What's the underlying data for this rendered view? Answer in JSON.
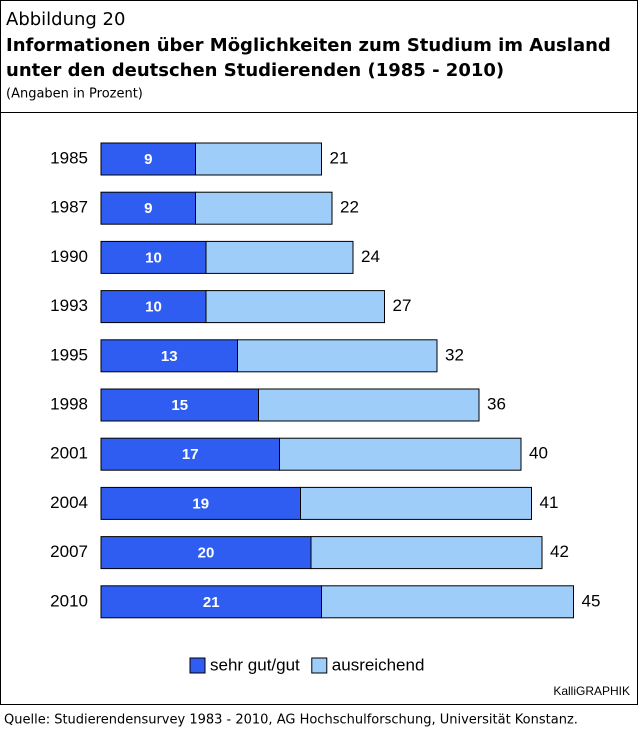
{
  "chart_data": {
    "type": "stacked_bar_horizontal",
    "figure_label": "Abbildung 20",
    "title": "Informationen über Möglichkeiten zum Studium im Ausland unter den deutschen Studierenden (1985 - 2010)",
    "title_lines": [
      "Informationen über Möglichkeiten zum Studium im Ausland",
      "unter den deutschen Studierenden (1985 - 2010)"
    ],
    "subtitle": "(Angaben in Prozent)",
    "categories": [
      "1985",
      "1987",
      "1990",
      "1993",
      "1995",
      "1998",
      "2001",
      "2004",
      "2007",
      "2010"
    ],
    "series": [
      {
        "name": "sehr gut/gut",
        "color": "#2f5df2",
        "values": [
          9,
          9,
          10,
          10,
          13,
          15,
          17,
          19,
          20,
          21
        ]
      },
      {
        "name": "ausreichend",
        "color": "#9fcdfa",
        "values": [
          12,
          13,
          14,
          17,
          19,
          21,
          23,
          22,
          22,
          24
        ]
      }
    ],
    "totals": [
      21,
      22,
      24,
      27,
      32,
      36,
      40,
      41,
      42,
      45
    ],
    "credit": "KalliGRAPHIK",
    "source": "Quelle: Studierendensurvey 1983 - 2010, AG Hochschulforschung, Universität Konstanz."
  }
}
